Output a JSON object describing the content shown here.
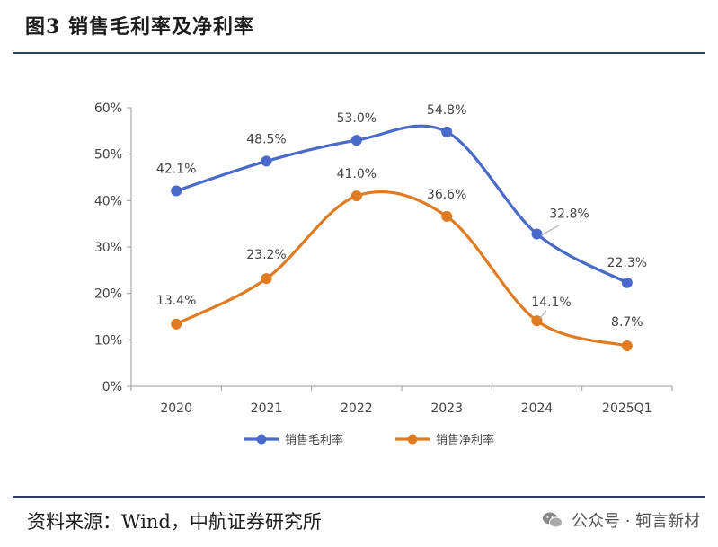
{
  "header": {
    "title": "图3  销售毛利率及净利率"
  },
  "footer": {
    "source": "资料来源：Wind，中航证券研究所",
    "watermark": "公众号 · 轲言新材"
  },
  "chart_data": {
    "type": "line",
    "categories": [
      "2020",
      "2021",
      "2022",
      "2023",
      "2024",
      "2025Q1"
    ],
    "y_ticks": [
      "0%",
      "10%",
      "20%",
      "30%",
      "40%",
      "50%",
      "60%"
    ],
    "ylim": [
      0,
      60
    ],
    "grid": false,
    "legend_position": "bottom",
    "series": [
      {
        "name": "销售毛利率",
        "color": "#4a6ac9",
        "values": [
          42.1,
          48.5,
          53.0,
          54.8,
          32.8,
          22.3
        ],
        "labels": [
          "42.1%",
          "48.5%",
          "53.0%",
          "54.8%",
          "32.8%",
          "22.3%"
        ]
      },
      {
        "name": "销售净利率",
        "color": "#e07b22",
        "values": [
          13.4,
          23.2,
          41.0,
          36.6,
          14.1,
          8.7
        ],
        "labels": [
          "13.4%",
          "23.2%",
          "41.0%",
          "36.6%",
          "14.1%",
          "8.7%"
        ]
      }
    ]
  }
}
